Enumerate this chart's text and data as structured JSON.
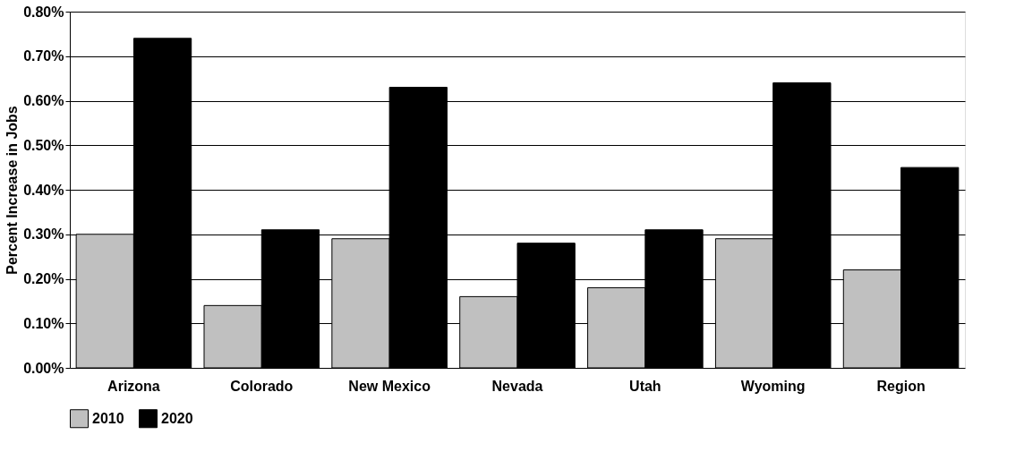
{
  "chart_data": {
    "type": "bar",
    "ylabel": "Percent Increase in Jobs",
    "categories": [
      "Arizona",
      "Colorado",
      "New Mexico",
      "Nevada",
      "Utah",
      "Wyoming",
      "Region"
    ],
    "series": [
      {
        "name": "2010",
        "color": "#c0c0c0",
        "values": [
          0.3,
          0.14,
          0.29,
          0.16,
          0.18,
          0.29,
          0.22
        ]
      },
      {
        "name": "2020",
        "color": "#000000",
        "values": [
          0.74,
          0.31,
          0.63,
          0.28,
          0.31,
          0.64,
          0.45
        ]
      }
    ],
    "ylim": [
      0,
      0.8
    ],
    "yticks": [
      {
        "value": 0,
        "label": "0.00%"
      },
      {
        "value": 0.1,
        "label": "0.10%"
      },
      {
        "value": 0.2,
        "label": "0.20%"
      },
      {
        "value": 0.3,
        "label": "0.30%"
      },
      {
        "value": 0.4,
        "label": "0.40%"
      },
      {
        "value": 0.5,
        "label": "0.50%"
      },
      {
        "value": 0.6,
        "label": "0.60%"
      },
      {
        "value": 0.7,
        "label": "0.70%"
      },
      {
        "value": 0.8,
        "label": "0.80%"
      }
    ],
    "grid": "y",
    "legend": "bottom"
  }
}
